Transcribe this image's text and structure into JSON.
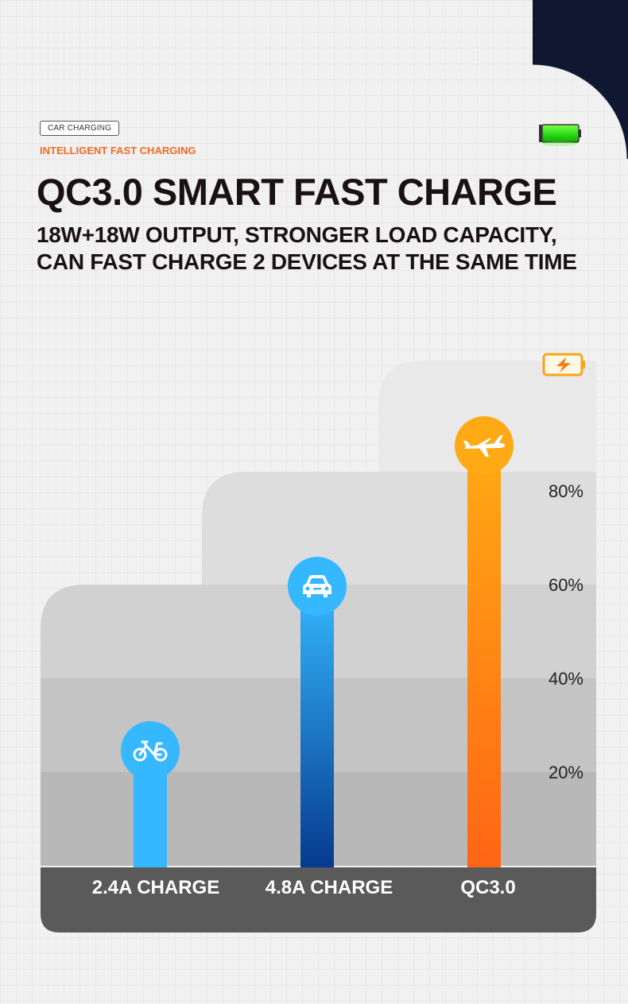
{
  "header": {
    "tag": "CAR CHARGING",
    "subtag": "INTELLIGENT FAST CHARGING",
    "title": "QC3.0 SMART FAST CHARGE",
    "subtitle_line1": "18W+18W OUTPUT, STRONGER LOAD CAPACITY,",
    "subtitle_line2": "CAN FAST CHARGE 2 DEVICES AT THE SAME TIME"
  },
  "icons": {
    "top_right": "green-battery-icon",
    "chart_corner": "charging-battery-icon"
  },
  "colors": {
    "accent_orange": "#f26b22",
    "title": "#1a1112",
    "bar_light_blue": "#35b8ff",
    "bar_dark_blue_top": "#35b8ff",
    "bar_dark_blue_bottom": "#063a8e",
    "bar_orange_top": "#ffaa14",
    "bar_orange_bottom": "#ff6515",
    "label_band": "#5a5a5a"
  },
  "chart_data": {
    "type": "bar",
    "categories": [
      "2.4A CHARGE",
      "4.8A CHARGE",
      "QC3.0"
    ],
    "values": [
      25,
      60,
      90
    ],
    "icons": [
      "bicycle-icon",
      "car-icon",
      "airplane-icon"
    ],
    "ytick_labels": [
      "20%",
      "40%",
      "60%",
      "80%"
    ],
    "ytick_values": [
      20,
      40,
      60,
      80
    ],
    "ylim": [
      0,
      100
    ],
    "grid": false
  }
}
